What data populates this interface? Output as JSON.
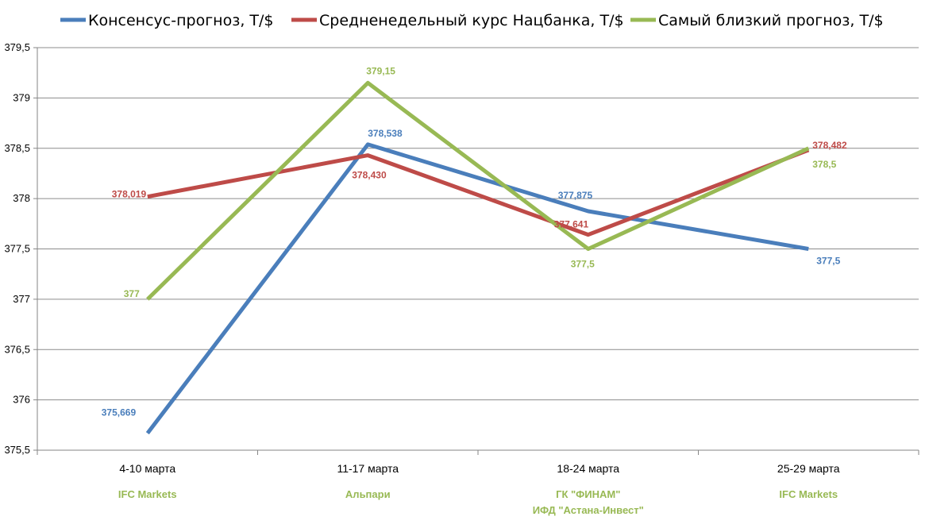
{
  "chart_data": {
    "type": "line",
    "categories": [
      "4-10 марта",
      "11-17 марта",
      "18-24 марта",
      "25-29 марта"
    ],
    "sub_labels": [
      [
        "IFC Markets"
      ],
      [
        "Альпари"
      ],
      [
        "ГК \"ФИНАМ\"",
        "ИФД \"Астана-Инвест\""
      ],
      [
        "IFC Markets"
      ]
    ],
    "series": [
      {
        "name": "Консенсус-прогноз,  Т/$",
        "color": "#4a7ebb",
        "values": [
          375.669,
          378.538,
          377.875,
          377.5
        ],
        "labels": [
          "375,669",
          "378,538",
          "377,875",
          "377,5"
        ]
      },
      {
        "name": "Средненедельный  курс Нацбанка, Т/$",
        "color": "#be4b48",
        "values": [
          378.019,
          378.43,
          377.641,
          378.482
        ],
        "labels": [
          "378,019",
          "378,430",
          "377,641",
          "378,482"
        ]
      },
      {
        "name": "Самый близкий прогноз, Т/$",
        "color": "#98b954",
        "values": [
          377,
          379.15,
          377.5,
          378.5
        ],
        "labels": [
          "377",
          "379,15",
          "377,5",
          "378,5"
        ]
      }
    ],
    "ylim": [
      375.5,
      379.5
    ],
    "yticks": [
      375.5,
      376,
      376.5,
      377,
      377.5,
      378,
      378.5,
      379,
      379.5
    ],
    "ytick_labels": [
      "375,5",
      "376",
      "376,5",
      "377",
      "377,5",
      "378",
      "378,5",
      "379",
      "379,5"
    ],
    "grid": true,
    "legend_position": "top",
    "sub_label_color": "#98b954"
  }
}
